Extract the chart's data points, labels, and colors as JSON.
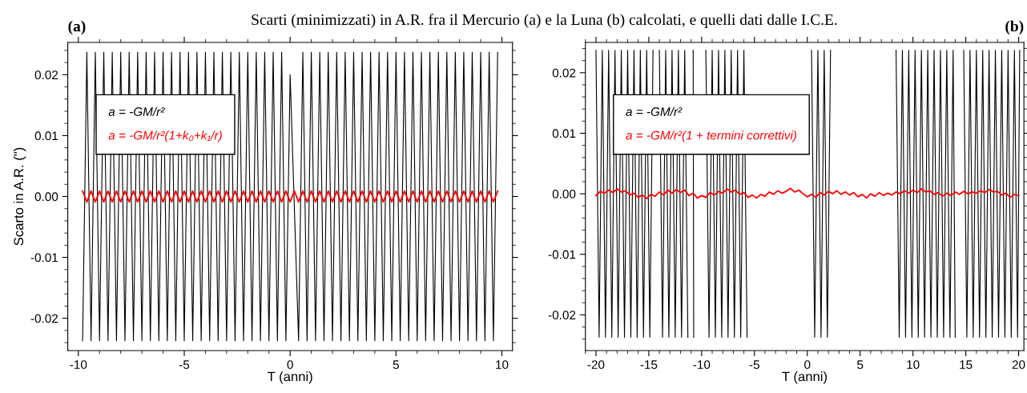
{
  "chart_data": [
    {
      "type": "line",
      "title": "(a)",
      "xlabel": "T (anni)",
      "ylabel": "Scarto in A.R. (\")",
      "annotations": [
        "Scarti (minimizzati) in A.R. fra il Mercurio (a) e la Luna (b) calcolati, e quelli dati dalle I.C.E."
      ],
      "x": [
        -9.8,
        -9.6,
        -9.4,
        -9.2,
        -9.0,
        -8.8,
        -8.6,
        -8.4,
        -8.2,
        -8.0,
        -7.8,
        -7.6,
        -7.4,
        -7.2,
        -7.0,
        -6.8,
        -6.6,
        -6.4,
        -6.2,
        -6.0,
        -5.8,
        -5.6,
        -5.4,
        -5.2,
        -5.0,
        -4.8,
        -4.6,
        -4.4,
        -4.2,
        -4.0,
        -3.8,
        -3.6,
        -3.4,
        -3.2,
        -3.0,
        -2.8,
        -2.6,
        -2.4,
        -2.2,
        -2.0,
        -1.8,
        -1.6,
        -1.4,
        -1.2,
        -1.0,
        -0.8,
        -0.6,
        -0.4,
        -0.2,
        0.0,
        0.2,
        0.4,
        0.6,
        0.8,
        1.0,
        1.2,
        1.4,
        1.6,
        1.8,
        2.0,
        2.2,
        2.4,
        2.6,
        2.8,
        3.0,
        3.2,
        3.4,
        3.6,
        3.8,
        4.0,
        4.2,
        4.4,
        4.6,
        4.8,
        5.0,
        5.2,
        5.4,
        5.6,
        5.8,
        6.0,
        6.2,
        6.4,
        6.6,
        6.8,
        7.0,
        7.2,
        7.4,
        7.6,
        7.8,
        8.0,
        8.2,
        8.4,
        8.6,
        8.8,
        9.0,
        9.2,
        9.4,
        9.6,
        9.8
      ],
      "series": [
        {
          "name": "a = -GM/r²",
          "color": "#000000",
          "x": [
            -9.8,
            -9.6,
            -9.4,
            -9.2,
            -9.0,
            -8.8,
            -8.6,
            -8.4,
            -8.2,
            -8.0,
            -7.8,
            -7.6,
            -7.4,
            -7.2,
            -7.0,
            -6.8,
            -6.6,
            -6.4,
            -6.2,
            -6.0,
            -5.8,
            -5.6,
            -5.4,
            -5.2,
            -5.0,
            -4.8,
            -4.6,
            -4.4,
            -4.2,
            -4.0,
            -3.8,
            -3.6,
            -3.4,
            -3.2,
            -3.0,
            -2.8,
            -2.6,
            -2.4,
            -2.2,
            -2.0,
            -1.8,
            -1.6,
            -1.4,
            -1.2,
            -1.0,
            -0.8,
            -0.6,
            -0.4,
            -0.2,
            0.0,
            0.4,
            0.6,
            0.8,
            1.0,
            1.2,
            1.4,
            1.6,
            1.8,
            2.0,
            2.2,
            2.4,
            2.6,
            2.8,
            3.0,
            3.2,
            3.4,
            3.6,
            3.8,
            4.0,
            4.2,
            4.4,
            4.6,
            4.8,
            5.0,
            5.2,
            5.4,
            5.6,
            5.8,
            6.0,
            6.2,
            6.4,
            6.6,
            6.8,
            7.0,
            7.2,
            7.4,
            7.6,
            7.8,
            8.0,
            8.2,
            8.4,
            8.6,
            8.8,
            9.0,
            9.2,
            9.4,
            9.6,
            9.8
          ],
          "values": [
            -0.0237,
            0.0237,
            -0.0237,
            0.0237,
            -0.0237,
            0.0237,
            -0.0237,
            0.0237,
            -0.0237,
            0.0237,
            -0.0237,
            0.0237,
            -0.0237,
            0.0237,
            -0.0237,
            0.0237,
            -0.0237,
            0.0237,
            -0.0237,
            0.0237,
            -0.0237,
            0.0237,
            -0.0237,
            0.0237,
            -0.0237,
            0.0237,
            -0.0237,
            0.0237,
            -0.0237,
            0.0237,
            -0.0237,
            0.0237,
            -0.0237,
            0.0237,
            -0.0237,
            0.0237,
            -0.0237,
            0.0237,
            -0.0237,
            0.0237,
            -0.0237,
            0.0237,
            -0.0237,
            0.0237,
            -0.0237,
            0.0237,
            -0.0237,
            0.0237,
            -0.0237,
            0.02,
            -0.0237,
            0.0237,
            -0.0237,
            0.0237,
            -0.0237,
            0.0237,
            -0.0237,
            0.0237,
            -0.0237,
            0.0237,
            -0.0237,
            0.0237,
            -0.0237,
            0.0237,
            -0.0237,
            0.0237,
            -0.0237,
            0.0237,
            -0.0237,
            0.0237,
            -0.0237,
            0.0237,
            -0.0237,
            0.0237,
            -0.0237,
            0.0237,
            -0.0237,
            0.0237,
            -0.0237,
            0.0237,
            -0.0237,
            0.0237,
            -0.0237,
            0.0237,
            -0.0237,
            0.0237,
            -0.0237,
            0.0237,
            -0.0237,
            0.0237,
            -0.0237,
            0.0237,
            -0.0237,
            0.0237,
            -0.0237,
            0.0237,
            -0.0237,
            0.0237
          ]
        },
        {
          "name": "a = -GM/r²(1+k₀+k₁/r)",
          "color": "#ff0000",
          "values": [
            0.0009,
            -0.0009,
            0.0009,
            -0.0009,
            0.0009,
            -0.0009,
            0.0009,
            -0.0009,
            0.0009,
            -0.0009,
            0.0009,
            -0.0009,
            0.0009,
            -0.0009,
            0.0009,
            -0.0009,
            0.0009,
            -0.0009,
            0.0009,
            -0.0009,
            0.0009,
            -0.0009,
            0.0009,
            -0.0009,
            0.0009,
            -0.0009,
            0.0009,
            -0.0009,
            0.0009,
            -0.0009,
            0.0009,
            -0.0009,
            0.0009,
            -0.0009,
            0.0009,
            -0.0009,
            0.0009,
            -0.0009,
            0.0009,
            -0.0009,
            0.0009,
            -0.0009,
            0.0009,
            -0.0009,
            0.0009,
            -0.0009,
            0.0009,
            -0.0009,
            0.0009,
            -0.0009,
            0.0009,
            -0.0009,
            0.0009,
            -0.0009,
            0.0009,
            -0.0009,
            0.0009,
            -0.0009,
            0.0009,
            -0.0009,
            0.0009,
            -0.0009,
            0.0009,
            -0.0009,
            0.0009,
            -0.0009,
            0.0009,
            -0.0009,
            0.0009,
            -0.0009,
            0.0009,
            -0.0009,
            0.0009,
            -0.0009,
            0.0009,
            -0.0009,
            0.0009,
            -0.0009,
            0.0009,
            -0.0009,
            0.0009,
            -0.0009,
            0.0009,
            -0.0009,
            0.0009,
            -0.0009,
            0.0009,
            -0.0009,
            0.0009,
            -0.0009,
            0.0009,
            -0.0009,
            0.0009,
            -0.0009,
            0.0009,
            -0.0009,
            0.0009,
            -0.0009,
            0.0009
          ]
        }
      ],
      "xlim": [
        -10.5,
        10.5
      ],
      "xticks": [
        -10,
        -5,
        0,
        5,
        10
      ],
      "ylim": [
        -0.0253,
        0.0253
      ],
      "yticks": [
        {
          "value": -0.02,
          "label": "-0.02"
        },
        {
          "value": -0.01,
          "label": "-0.01"
        },
        {
          "value": 0,
          "label": "0.00"
        },
        {
          "value": 0.01,
          "label": "0.01"
        },
        {
          "value": 0.02,
          "label": "0.02"
        }
      ],
      "legend": "top left"
    },
    {
      "type": "line",
      "title": "(b)",
      "xlabel": "T (anni)",
      "x": [
        -20.0,
        -19.6,
        -19.2,
        -18.8,
        -18.4,
        -18.0,
        -17.6,
        -17.2,
        -16.8,
        -16.4,
        -16.0,
        -15.6,
        -15.2,
        -14.8,
        -14.4,
        -14.0,
        -13.6,
        -13.2,
        -12.8,
        -12.4,
        -12.0,
        -11.6,
        -11.2,
        -10.8,
        -10.4,
        -10.0,
        -9.6,
        -9.2,
        -8.8,
        -8.4,
        -8.0,
        -7.6,
        -7.2,
        -6.8,
        -6.4,
        -6.0,
        -5.6,
        -5.2,
        -4.8,
        -4.4,
        -4.0,
        -3.6,
        -3.2,
        -2.8,
        -2.4,
        -2.0,
        -1.6,
        -1.2,
        -0.8,
        -0.4,
        0.0,
        0.4,
        0.8,
        1.2,
        1.6,
        2.0,
        2.4,
        2.8,
        3.2,
        3.6,
        4.0,
        4.4,
        4.8,
        5.2,
        5.6,
        6.0,
        6.4,
        6.8,
        7.2,
        7.6,
        8.0,
        8.4,
        8.8,
        9.2,
        9.6,
        10.0,
        10.4,
        10.8,
        11.2,
        11.6,
        12.0,
        12.4,
        12.8,
        13.2,
        13.6,
        14.0,
        14.4,
        14.8,
        15.2,
        15.6,
        16.0,
        16.4,
        16.8,
        17.2,
        17.6,
        18.0,
        18.4,
        18.8,
        19.2,
        19.6,
        20.0
      ],
      "series": [
        {
          "name": "a = -GM/r²",
          "color": "#000000",
          "x": [
            -20.0,
            -19.7,
            -19.4,
            -19.1,
            -18.8,
            -18.5,
            -18.2,
            -17.9,
            -17.6,
            -17.3,
            -17.0,
            -16.7,
            -16.4,
            -16.1,
            -15.8,
            -15.5,
            -15.2,
            -14.9,
            -14.6,
            -14.3,
            -14.0,
            -13.7,
            -13.4,
            -13.1,
            -12.8,
            -12.5,
            -12.2,
            -11.9,
            -11.6,
            -11.3,
            -11.0,
            -10.8,
            -10.75,
            -10.2,
            -9.6,
            -9.3,
            -9.0,
            -8.7,
            -8.4,
            -8.1,
            -7.8,
            -7.5,
            -7.2,
            -6.9,
            -6.6,
            -6.3,
            -6.0,
            -5.7,
            -2.0,
            0.4,
            0.7,
            1.0,
            1.3,
            1.6,
            1.9,
            2.2,
            5.0,
            8.4,
            8.7,
            9.0,
            9.3,
            9.6,
            9.9,
            10.2,
            10.5,
            10.8,
            11.1,
            11.4,
            11.7,
            12.0,
            12.3,
            12.6,
            12.9,
            13.2,
            13.5,
            13.8,
            14.0,
            14.4,
            14.8,
            15.1,
            15.4,
            15.7,
            16.0,
            16.3,
            16.6,
            16.9,
            17.2,
            17.5,
            17.8,
            18.1,
            18.4,
            18.7,
            19.0,
            19.3,
            19.6,
            19.9,
            20.1
          ],
          "values": [
            0.0237,
            -0.0237,
            0.0237,
            -0.0237,
            0.0237,
            -0.0237,
            0.0237,
            -0.0237,
            0.0237,
            -0.0237,
            0.0237,
            -0.0237,
            0.0237,
            -0.0237,
            0.0237,
            -0.0237,
            0.0237,
            -0.0237,
            0.0237,
            null,
            0.0237,
            -0.0237,
            0.0237,
            -0.0237,
            0.0237,
            -0.0237,
            0.0237,
            -0.0237,
            0.0237,
            -0.0237,
            null,
            0.0237,
            -0.0237,
            null,
            0.0237,
            -0.0237,
            0.0237,
            -0.0237,
            0.0237,
            -0.0237,
            0.0237,
            -0.0237,
            0.0237,
            -0.0237,
            0.0237,
            -0.0237,
            0.0237,
            -0.0237,
            null,
            0.0237,
            -0.0237,
            0.0237,
            -0.0237,
            0.0237,
            -0.0237,
            0.0237,
            null,
            0.0237,
            -0.0237,
            0.0237,
            -0.0237,
            0.0237,
            -0.0237,
            0.0237,
            -0.0237,
            0.0237,
            -0.0237,
            0.0237,
            -0.0237,
            0.0237,
            -0.0237,
            0.0237,
            -0.0237,
            0.0237,
            -0.0237,
            0.0237,
            -0.0237,
            null,
            0.0237,
            -0.0237,
            0.0237,
            -0.0237,
            0.0237,
            -0.0237,
            0.0237,
            -0.0237,
            0.0237,
            -0.0237,
            0.0237,
            -0.0237,
            0.0237,
            -0.0237,
            0.0237,
            -0.0237,
            0.0237,
            -0.0237,
            0.0237
          ]
        },
        {
          "name": "a = -GM/r²(1 + termini correttivi)",
          "color": "#ff0000",
          "values": [
            -0.0003,
            0.0004,
            0.0001,
            0.0006,
            0.0002,
            0.0008,
            0.0003,
            0.0005,
            -0.0002,
            0.0001,
            -0.0006,
            -0.0002,
            -0.0008,
            -0.0001,
            -0.0004,
            0.0003,
            -0.0002,
            0.0006,
            0.0001,
            0.0007,
            0.0002,
            0.0006,
            -0.0003,
            0.0001,
            -0.0007,
            -0.0003,
            -0.0006,
            0.0002,
            -0.0002,
            0.0004,
            0.0001,
            0.0008,
            0.0003,
            0.0006,
            -0.0001,
            0.0002,
            -0.0006,
            -0.0002,
            -0.0007,
            -0.0001,
            -0.0004,
            0.0003,
            -0.0001,
            0.0005,
            0.0001,
            0.0004,
            0.0009,
            0.0003,
            0.0006,
            0.0,
            -0.0005,
            -0.0001,
            -0.0006,
            0.0002,
            -0.0002,
            0.0004,
            0.0,
            0.0005,
            -0.0001,
            0.0003,
            -0.0002,
            0.0002,
            -0.0005,
            -0.0001,
            -0.0007,
            0.0,
            -0.0004,
            0.0002,
            -0.0003,
            0.0001,
            -0.0002,
            0.0003,
            0.0,
            0.0005,
            0.0001,
            0.0006,
            0.0002,
            0.0008,
            0.0003,
            0.0005,
            -0.0001,
            0.0002,
            -0.0004,
            0.0001,
            -0.0003,
            0.0003,
            -0.0001,
            0.0004,
            0.0,
            0.0003,
            0.0001,
            0.0005,
            0.0002,
            0.0007,
            0.0003,
            0.0004,
            -0.0002,
            0.0001,
            -0.0006,
            -0.0001,
            -0.0003
          ]
        }
      ],
      "xlim": [
        -21,
        20.5
      ],
      "xticks": [
        -20,
        -15,
        -10,
        -5,
        0,
        5,
        10,
        15,
        20
      ],
      "ylim": [
        -0.0259,
        0.025
      ],
      "yticks": [
        {
          "value": -0.02,
          "label": "-0.02"
        },
        {
          "value": -0.01,
          "label": "-0.01"
        },
        {
          "value": 0,
          "label": "0.00"
        },
        {
          "value": 0.01,
          "label": "0.01"
        },
        {
          "value": 0.02,
          "label": "0.02"
        }
      ],
      "legend": "top left"
    }
  ]
}
